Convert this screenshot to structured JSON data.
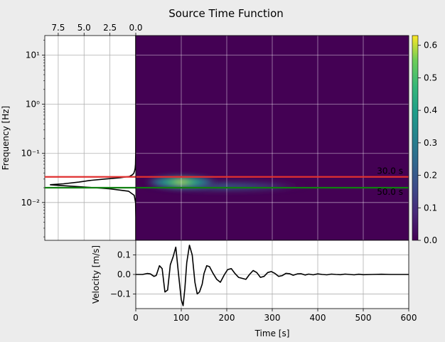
{
  "figure": {
    "title": "Source Time Function",
    "background": "#ececec"
  },
  "chart_data": [
    {
      "panel": "spectrum",
      "type": "line",
      "x_axis_position": "top",
      "xlim": [
        0,
        8.8
      ],
      "x_inverted": true,
      "xticks": [
        7.5,
        5.0,
        2.5,
        0.0
      ],
      "xtick_labels": [
        "7.5",
        "5.0",
        "2.5",
        "0.0"
      ],
      "ylabel": "Frequency [Hz]",
      "yscale": "log",
      "ylim": [
        0.0017,
        25
      ],
      "yticks": [
        0.01,
        0.1,
        1,
        10
      ],
      "ytick_labels": [
        "10⁻²",
        "10⁻¹",
        "10⁰",
        "10¹"
      ],
      "grid": true,
      "series": [
        {
          "color": "#000000",
          "freq": [
            0.0017,
            0.005,
            0.01,
            0.014,
            0.017,
            0.019,
            0.02,
            0.021,
            0.022,
            0.023,
            0.024,
            0.026,
            0.028,
            0.03,
            0.032,
            0.034,
            0.037,
            0.04,
            0.045,
            0.05,
            0.06,
            0.1,
            1,
            25
          ],
          "amplitude": [
            0,
            0,
            0.02,
            0.15,
            0.7,
            2.5,
            4.0,
            5.5,
            7.0,
            8.3,
            7.0,
            5.5,
            4.5,
            3.0,
            1.5,
            0.6,
            0.3,
            0.18,
            0.1,
            0.06,
            0.03,
            0.01,
            0,
            0
          ]
        }
      ]
    },
    {
      "panel": "time-frequency",
      "type": "heatmap",
      "colormap": "viridis",
      "xlim": [
        0,
        600
      ],
      "yscale": "log",
      "ylim": [
        0.0017,
        25
      ],
      "grid": true,
      "energy_peak": {
        "time_s": 100,
        "freq_hz": 0.026
      },
      "annotations": [
        {
          "label": "30.0 s",
          "freq_hz": 0.0333,
          "color": "#e03030"
        },
        {
          "label": "50.0 s",
          "freq_hz": 0.02,
          "color": "#108010"
        }
      ]
    },
    {
      "panel": "colorbar",
      "type": "colorbar",
      "range": [
        0.0,
        0.63
      ],
      "ticks": [
        0.0,
        0.1,
        0.2,
        0.3,
        0.4,
        0.5,
        0.6
      ],
      "tick_labels": [
        "0.0",
        "0.1",
        "0.2",
        "0.3",
        "0.4",
        "0.5",
        "0.6"
      ]
    },
    {
      "panel": "trace",
      "type": "line",
      "xlabel": "Time [s]",
      "ylabel": "Velocity [m/s]",
      "xlim": [
        0,
        600
      ],
      "ylim": [
        -0.175,
        0.175
      ],
      "xticks": [
        0,
        100,
        200,
        300,
        400,
        500,
        600
      ],
      "xtick_labels": [
        "0",
        "100",
        "200",
        "300",
        "400",
        "500",
        "600"
      ],
      "yticks": [
        -0.1,
        0.0,
        0.1
      ],
      "ytick_labels": [
        "−0.1",
        "0.0",
        "0.1"
      ],
      "grid": true,
      "series": [
        {
          "color": "#000000",
          "x": [
            0,
            15,
            25,
            32,
            40,
            45,
            52,
            58,
            64,
            70,
            76,
            82,
            88,
            94,
            100,
            104,
            108,
            112,
            118,
            124,
            130,
            135,
            140,
            146,
            150,
            156,
            162,
            170,
            178,
            186,
            195,
            202,
            210,
            218,
            226,
            234,
            242,
            250,
            258,
            266,
            274,
            282,
            290,
            298,
            306,
            314,
            322,
            330,
            338,
            346,
            355,
            363,
            372,
            380,
            390,
            400,
            410,
            420,
            430,
            440,
            450,
            460,
            470,
            480,
            490,
            500,
            520,
            540,
            560,
            580,
            600
          ],
          "y": [
            0.0,
            0.0,
            0.005,
            0.003,
            -0.01,
            -0.005,
            0.045,
            0.03,
            -0.09,
            -0.08,
            0.05,
            0.09,
            0.14,
            0.0,
            -0.13,
            -0.16,
            -0.07,
            0.06,
            0.15,
            0.1,
            -0.04,
            -0.1,
            -0.09,
            -0.05,
            0.005,
            0.045,
            0.04,
            0.005,
            -0.025,
            -0.04,
            0.0,
            0.025,
            0.03,
            0.005,
            -0.015,
            -0.02,
            -0.025,
            0.0,
            0.02,
            0.01,
            -0.015,
            -0.01,
            0.01,
            0.015,
            0.005,
            -0.01,
            -0.006,
            0.006,
            0.004,
            -0.004,
            0.003,
            0.004,
            -0.003,
            0.002,
            -0.002,
            0.003,
            0.0,
            -0.002,
            0.002,
            0.0,
            -0.001,
            0.002,
            0.0,
            -0.002,
            0.001,
            -0.001,
            0.0,
            0.001,
            0.0,
            0.0,
            0.0
          ]
        }
      ]
    }
  ]
}
